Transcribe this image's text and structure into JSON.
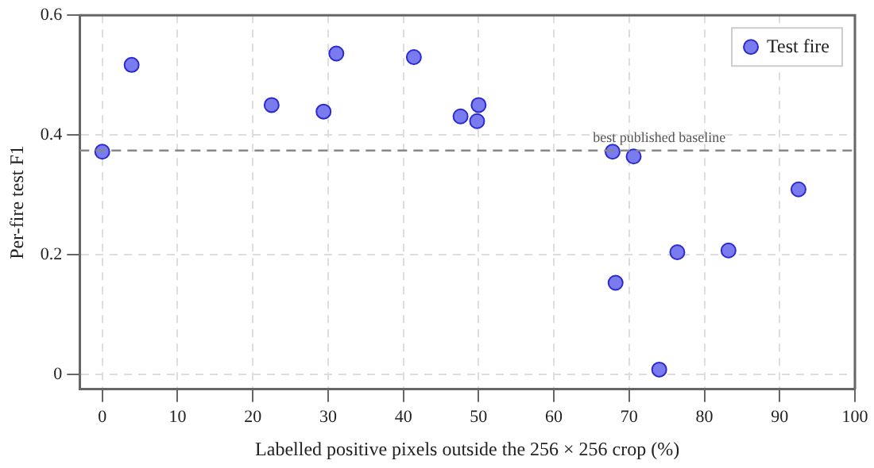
{
  "chart_data": {
    "type": "scatter",
    "xlabel": "Labelled positive pixels outside the 256 × 256 crop (%)",
    "ylabel": "Per-fire test F1",
    "x": [
      0,
      3.9,
      22.5,
      29.4,
      31.1,
      41.4,
      47.6,
      50,
      49.8,
      67.8,
      70.6,
      76.4,
      83.2,
      92.5,
      68.2,
      74
    ],
    "series": [
      {
        "name": "Test fire",
        "color": "#7b7bf0",
        "values": [
          0.372,
          0.517,
          0.45,
          0.439,
          0.536,
          0.53,
          0.431,
          0.45,
          0.423,
          0.372,
          0.364,
          0.204,
          0.207,
          0.309,
          0.153,
          0.008
        ]
      }
    ],
    "xlim": [
      -3,
      100
    ],
    "ylim": [
      -0.025,
      0.6
    ],
    "xticks": [
      0,
      10,
      20,
      30,
      40,
      50,
      60,
      70,
      80,
      90,
      100
    ],
    "yticks": [
      0,
      0.2,
      0.4,
      0.6
    ],
    "ref_lines": [
      {
        "axis": "y",
        "value": 0.374,
        "label": "best published baseline",
        "color": "#888888",
        "line_style": "dashed"
      }
    ],
    "grid": true,
    "legend": "top right",
    "marker": "circle"
  }
}
